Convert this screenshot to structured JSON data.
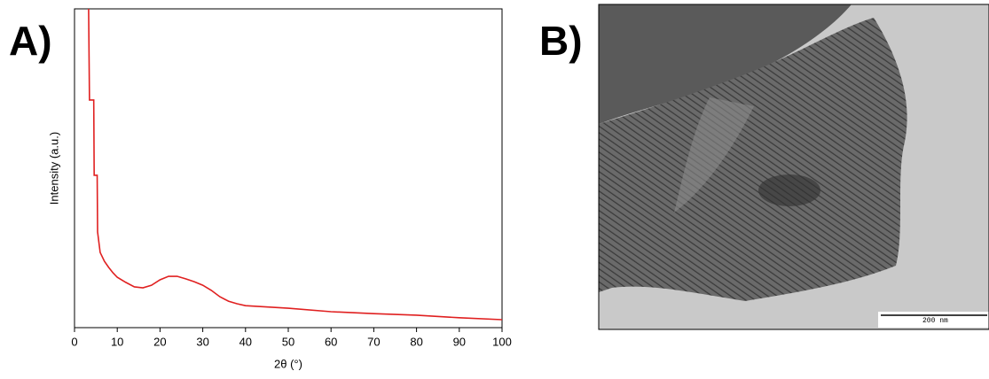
{
  "panel_labels": [
    "A)",
    "B)"
  ],
  "image": {
    "scale_bar_label": "200 nm"
  },
  "chart_data": {
    "type": "line",
    "x_label": "2θ (°)",
    "y_label": "Intensity (a.u.)",
    "xlim": [
      0,
      100
    ],
    "xticks": [
      0,
      10,
      20,
      30,
      40,
      50,
      60,
      70,
      80,
      90,
      100
    ],
    "ylim": [
      0,
      100
    ],
    "x": [
      3.3,
      3.5,
      4.5,
      4.6,
      5.3,
      5.4,
      6,
      7,
      8,
      9,
      10,
      12,
      14,
      16,
      18,
      20,
      22,
      24,
      26,
      28,
      30,
      32,
      34,
      36,
      38,
      40,
      50,
      60,
      70,
      80,
      90,
      100
    ],
    "series": [
      {
        "color": "#e02020",
        "values": [
          100,
          71.4,
          71.4,
          47.8,
          47.8,
          30,
          23.6,
          20.8,
          18.9,
          17.2,
          15.8,
          14.2,
          12.8,
          12.5,
          13.3,
          15,
          16.1,
          16.1,
          15.3,
          14.4,
          13.3,
          11.7,
          9.7,
          8.3,
          7.5,
          6.9,
          6.1,
          5,
          4.4,
          3.9,
          3.1,
          2.5
        ]
      }
    ]
  }
}
